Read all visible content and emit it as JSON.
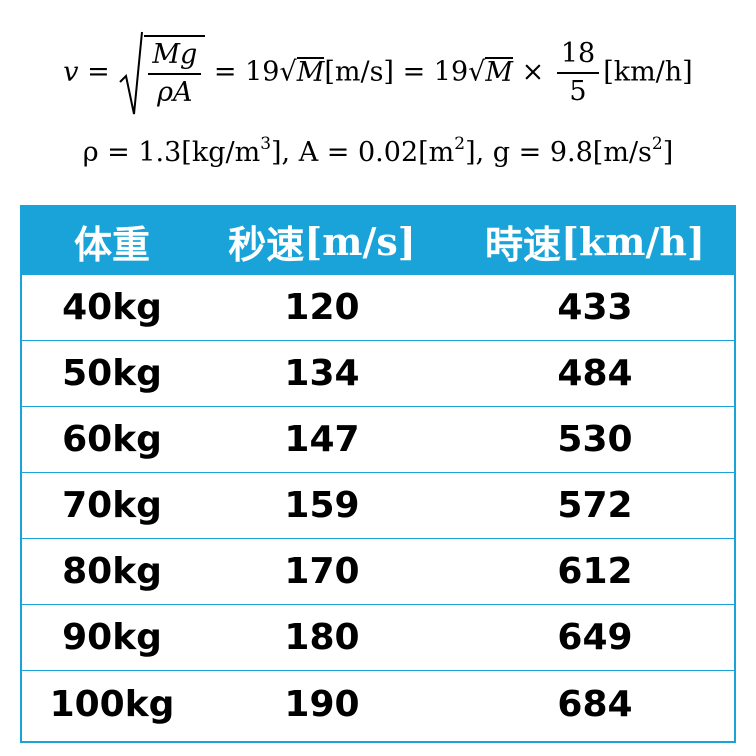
{
  "formula": {
    "v": "v",
    "eq": "=",
    "frac_num": "Mg",
    "frac_den": "ρA",
    "rhs1_coef": "19",
    "rhs1_var": "M",
    "rhs1_unit": "[m/s]",
    "rhs2_coef": "19",
    "rhs2_var": "M",
    "times": "×",
    "conv_num": "18",
    "conv_den": "5",
    "rhs2_unit": "[km/h]",
    "rho": "ρ = 1.3[kg/m",
    "rho_exp": "3",
    "area": "], A = 0.02[m",
    "area_exp": "2",
    "grav": "], g = 9.8[m/s",
    "grav_exp": "2",
    "grav_close": "]"
  },
  "table": {
    "header": {
      "col1": "体重",
      "col2_label": "秒速",
      "col2_unit": "[m/s]",
      "col3_label": "時速",
      "col3_unit": "[km/h]"
    },
    "rows": [
      {
        "weight": "40kg",
        "mps": "120",
        "kmh": "433"
      },
      {
        "weight": "50kg",
        "mps": "134",
        "kmh": "484"
      },
      {
        "weight": "60kg",
        "mps": "147",
        "kmh": "530"
      },
      {
        "weight": "70kg",
        "mps": "159",
        "kmh": "572"
      },
      {
        "weight": "80kg",
        "mps": "170",
        "kmh": "612"
      },
      {
        "weight": "90kg",
        "mps": "180",
        "kmh": "649"
      },
      {
        "weight": "100kg",
        "mps": "190",
        "kmh": "684"
      }
    ]
  },
  "colors": {
    "accent": "#1aa3d8",
    "header_text": "#ffffff",
    "body_text": "#000000"
  }
}
